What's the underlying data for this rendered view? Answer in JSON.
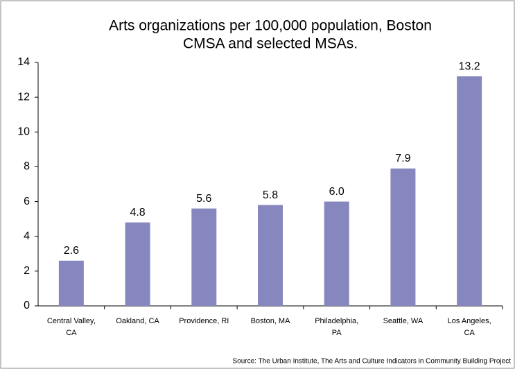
{
  "chart_data": {
    "type": "bar",
    "title": [
      "Arts organizations per 100,000 population, Boston",
      "CMSA and selected MSAs."
    ],
    "categories": [
      "Central Valley,\nCA",
      "Oakland, CA",
      "Providence, RI",
      "Boston, MA",
      "Philadelphia,\nPA",
      "Seattle, WA",
      "Los Angeles,\nCA"
    ],
    "values": [
      2.6,
      4.8,
      5.6,
      5.8,
      6.0,
      7.9,
      13.2
    ],
    "value_labels": [
      "2.6",
      "4.8",
      "5.6",
      "5.8",
      "6.0",
      "7.9",
      "13.2"
    ],
    "color": "#8787bf",
    "ylim": [
      0,
      14
    ],
    "yticks": [
      0,
      2,
      4,
      6,
      8,
      10,
      12,
      14
    ],
    "grid": false,
    "source": "Source: The Urban Institute, The Arts and Culture Indicators in Community Building Project"
  }
}
